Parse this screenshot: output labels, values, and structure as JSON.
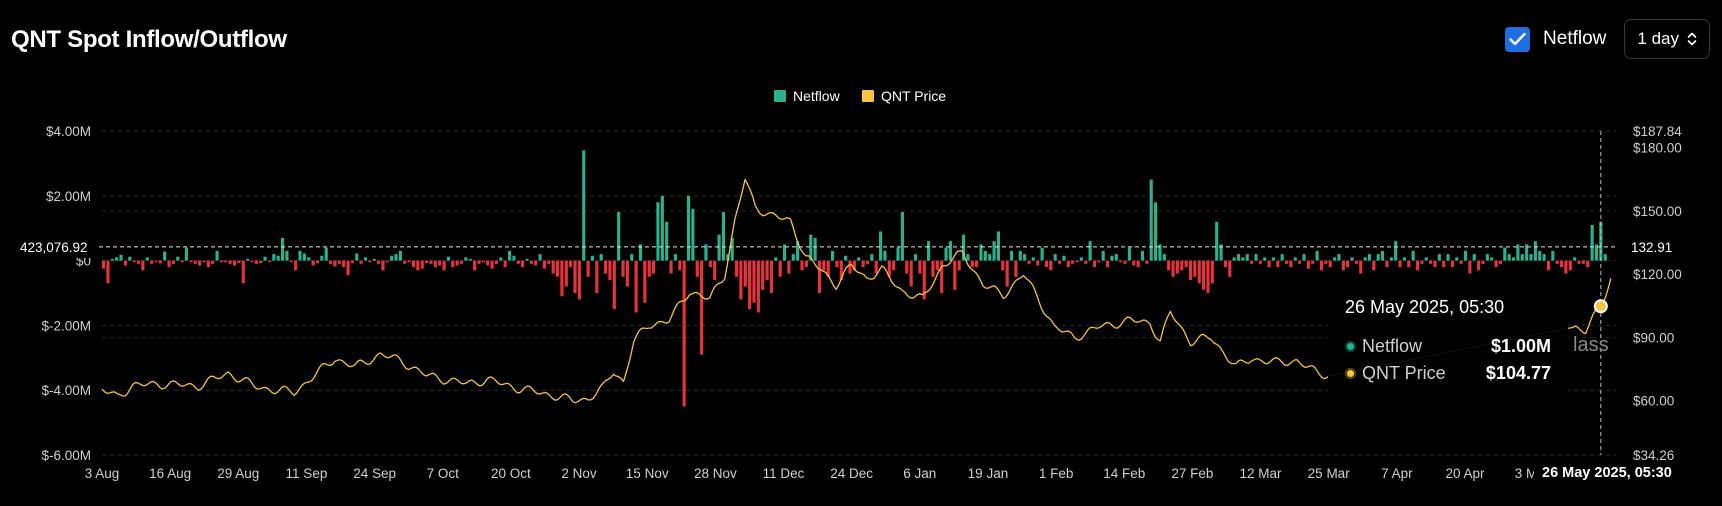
{
  "header": {
    "title": "QNT Spot Inflow/Outflow",
    "netflow_toggle_label": "Netflow",
    "interval_value": "1 day"
  },
  "colors": {
    "inflow": "#2bb18d",
    "outflow": "#e8323c",
    "price": "#f5c243",
    "checkbox": "#1f6fe0"
  },
  "icons": [
    "check-icon",
    "chevron-up-down-icon"
  ],
  "tooltip": {
    "date": "26 May 2025, 05:30",
    "rows": [
      {
        "name": "Netflow",
        "value": "$1.00M",
        "color": "#2bb18d"
      },
      {
        "name": "QNT Price",
        "value": "$104.77",
        "color": "#f5c243"
      }
    ]
  },
  "crosshair": {
    "date_label": "26 May 2025, 05:30",
    "netflow_label": "423,076.92",
    "price_label": "132.91",
    "netflow_value": 423076.92,
    "price_value": 132.91
  },
  "watermark_text": "lass",
  "chart_data": {
    "type": "bar",
    "legend": {
      "position": "top-center",
      "items": [
        {
          "name": "Netflow",
          "color": "#2bb18d"
        },
        {
          "name": "QNT Price",
          "color": "#f5c243"
        }
      ]
    },
    "x_start": "2024-08-03",
    "x_end": "2025-05-29",
    "x_ticks": [
      "3 Aug",
      "16 Aug",
      "29 Aug",
      "11 Sep",
      "24 Sep",
      "7 Oct",
      "20 Oct",
      "2 Nov",
      "15 Nov",
      "28 Nov",
      "11 Dec",
      "24 Dec",
      "6 Jan",
      "19 Jan",
      "1 Feb",
      "14 Feb",
      "27 Feb",
      "12 Mar",
      "25 Mar",
      "7 Apr",
      "20 Apr",
      "3 May"
    ],
    "left_axis": {
      "min": -6000000,
      "max": 4000000,
      "ticks": [
        4000000,
        2000000,
        0,
        -2000000,
        -4000000,
        -6000000
      ],
      "tick_labels": [
        "$4.00M",
        "$2.00M",
        "$0",
        "$-2.00M",
        "$-4.00M",
        "$-6.00M"
      ]
    },
    "right_axis": {
      "min": 34.26,
      "max": 187.84,
      "ticks": [
        187.84,
        180,
        150,
        120,
        90,
        60,
        34.26
      ],
      "tick_labels": [
        "$187.84",
        "$180.00",
        "$150.00",
        "$120.00",
        "$90.00",
        "$60.00",
        "$34.26"
      ]
    },
    "grid": true,
    "series": [
      {
        "name": "Netflow",
        "type": "bar",
        "values": [
          -0.25,
          -0.7,
          0.05,
          0.1,
          0.18,
          -0.15,
          0.12,
          -0.05,
          -0.1,
          -0.3,
          0.1,
          -0.1,
          -0.05,
          -0.08,
          0.28,
          -0.2,
          -0.1,
          0.12,
          -0.05,
          0.4,
          -0.05,
          -0.1,
          -0.15,
          -0.05,
          -0.2,
          -0.1,
          0.3,
          -0.05,
          -0.05,
          -0.1,
          -0.15,
          -0.08,
          -0.7,
          0.05,
          -0.05,
          -0.1,
          -0.08,
          0.12,
          -0.05,
          0.2,
          0.15,
          0.7,
          0.3,
          -0.05,
          -0.3,
          0.3,
          0.22,
          0.1,
          -0.15,
          -0.08,
          0.15,
          0.4,
          -0.1,
          -0.18,
          -0.1,
          -0.2,
          -0.45,
          -0.08,
          0.22,
          -0.1,
          0.1,
          -0.05,
          0.05,
          -0.1,
          -0.3,
          -0.05,
          0.15,
          0.2,
          0.3,
          -0.1,
          -0.05,
          -0.2,
          -0.3,
          -0.25,
          -0.08,
          -0.1,
          -0.2,
          -0.15,
          -0.3,
          0.12,
          -0.2,
          -0.15,
          -0.1,
          0.1,
          0.05,
          -0.3,
          -0.1,
          -0.05,
          -0.15,
          -0.25,
          -0.1,
          0.1,
          -0.2,
          0.3,
          0.15,
          -0.1,
          -0.2,
          0.05,
          -0.1,
          -0.15,
          0.2,
          -0.25,
          -0.1,
          -0.4,
          -0.5,
          -1.1,
          -0.8,
          -0.2,
          -1.0,
          -1.2,
          3.4,
          -0.5,
          0.15,
          -1.0,
          0.2,
          -0.4,
          -0.6,
          -1.5,
          1.5,
          -0.5,
          -0.8,
          0.2,
          -1.6,
          0.5,
          -1.3,
          -0.5,
          -0.4,
          1.8,
          2.0,
          1.2,
          -0.4,
          0.2,
          -0.3,
          -4.5,
          2.0,
          1.6,
          -0.5,
          -2.9,
          0.5,
          -0.2,
          -0.6,
          0.8,
          1.5,
          0.2,
          0.7,
          -0.5,
          -1.2,
          -0.8,
          -1.5,
          -1.3,
          -1.6,
          -0.9,
          -0.6,
          -1.0,
          0.1,
          -0.5,
          0.5,
          -0.4,
          0.2,
          0.6,
          -0.3,
          -0.2,
          0.8,
          0.7,
          -1.0,
          -0.3,
          -0.5,
          0.3,
          -0.2,
          -0.6,
          0.15,
          -0.4,
          -0.3,
          0.1,
          -0.2,
          -0.1,
          0.2,
          -0.4,
          0.9,
          0.3,
          -0.5,
          -0.3,
          0.4,
          1.5,
          -0.4,
          -0.8,
          0.2,
          -0.4,
          -1.2,
          0.6,
          -0.5,
          -0.3,
          -1.0,
          0.4,
          0.6,
          -0.9,
          -0.3,
          0.8,
          0.2,
          -0.2,
          -0.2,
          0.5,
          0.3,
          0.2,
          0.6,
          0.9,
          -0.3,
          -0.8,
          0.3,
          -0.5,
          0.3,
          0.2,
          -0.1,
          0.1,
          -0.15,
          0.4,
          -0.2,
          -0.3,
          0.2,
          -0.1,
          0.15,
          -0.2,
          -0.1,
          -0.05,
          0.1,
          -0.1,
          0.6,
          -0.2,
          -0.05,
          0.3,
          -0.2,
          0.15,
          0.2,
          -0.05,
          -0.1,
          0.4,
          -0.15,
          -0.2,
          0.3,
          -0.1,
          2.5,
          1.8,
          0.5,
          0.2,
          -0.3,
          -0.5,
          -0.4,
          -0.3,
          -0.2,
          -0.6,
          -0.5,
          -0.7,
          -0.9,
          -1.0,
          -0.7,
          1.2,
          0.5,
          -0.2,
          -0.5,
          0.1,
          0.2,
          0.1,
          0.2,
          -0.1,
          0.2,
          -0.1,
          0.1,
          -0.2,
          0.1,
          -0.2,
          0.2,
          -0.1,
          -0.2,
          0.1,
          -0.1,
          0.2,
          -0.25,
          -0.1,
          0.3,
          -0.3,
          -0.1,
          -0.2,
          0.1,
          0.2,
          -0.3,
          -0.2,
          0.1,
          -0.1,
          -0.4,
          0.1,
          0.2,
          -0.3,
          0.2,
          0.3,
          -0.2,
          0.1,
          0.6,
          -0.2,
          0.1,
          -0.2,
          0.3,
          -0.3,
          -0.1,
          0.1,
          -0.1,
          -0.2,
          0.2,
          -0.2,
          0.2,
          -0.2,
          0.1,
          -0.1,
          0.3,
          -0.4,
          0.2,
          -0.3,
          -0.1,
          0.2,
          0.1,
          -0.2,
          -0.1,
          0.4,
          0.2,
          0.1,
          0.5,
          0.2,
          0.5,
          0.2,
          0.6,
          0.3,
          0.2,
          -0.3,
          0.3,
          -0.1,
          -0.2,
          -0.4,
          -0.3,
          0.1,
          -0.1,
          -0.1,
          -0.2,
          1.1,
          0.5,
          1.2,
          0.2
        ],
        "unit_scale": 1000000
      },
      {
        "name": "QNT Price",
        "type": "line",
        "axis": "right",
        "keypoints": [
          [
            "2024-08-03",
            65
          ],
          [
            "2024-08-06",
            62
          ],
          [
            "2024-08-09",
            67
          ],
          [
            "2024-08-14",
            68
          ],
          [
            "2024-08-22",
            67
          ],
          [
            "2024-08-28",
            73
          ],
          [
            "2024-09-02",
            67
          ],
          [
            "2024-09-06",
            65
          ],
          [
            "2024-09-10",
            64
          ],
          [
            "2024-09-14",
            72
          ],
          [
            "2024-09-18",
            80
          ],
          [
            "2024-09-22",
            76
          ],
          [
            "2024-09-27",
            82
          ],
          [
            "2024-10-01",
            79
          ],
          [
            "2024-10-06",
            72
          ],
          [
            "2024-10-10",
            70
          ],
          [
            "2024-10-14",
            68
          ],
          [
            "2024-10-18",
            70
          ],
          [
            "2024-10-24",
            66
          ],
          [
            "2024-10-28",
            64
          ],
          [
            "2024-11-01",
            62
          ],
          [
            "2024-11-04",
            60
          ],
          [
            "2024-11-07",
            61
          ],
          [
            "2024-11-10",
            66
          ],
          [
            "2024-11-12",
            74
          ],
          [
            "2024-11-14",
            69
          ],
          [
            "2024-11-16",
            88
          ],
          [
            "2024-11-19",
            96
          ],
          [
            "2024-11-23",
            98
          ],
          [
            "2024-11-27",
            112
          ],
          [
            "2024-12-01",
            108
          ],
          [
            "2024-12-04",
            120
          ],
          [
            "2024-12-06",
            145
          ],
          [
            "2024-12-08",
            165
          ],
          [
            "2024-12-10",
            152
          ],
          [
            "2024-12-13",
            148
          ],
          [
            "2024-12-17",
            145
          ],
          [
            "2024-12-20",
            128
          ],
          [
            "2024-12-23",
            122
          ],
          [
            "2024-12-26",
            115
          ],
          [
            "2024-12-29",
            124
          ],
          [
            "2025-01-01",
            118
          ],
          [
            "2025-01-04",
            122
          ],
          [
            "2025-01-08",
            112
          ],
          [
            "2025-01-12",
            108
          ],
          [
            "2025-01-16",
            124
          ],
          [
            "2025-01-20",
            130
          ],
          [
            "2025-01-24",
            115
          ],
          [
            "2025-01-28",
            110
          ],
          [
            "2025-02-01",
            120
          ],
          [
            "2025-02-04",
            108
          ],
          [
            "2025-02-07",
            95
          ],
          [
            "2025-02-11",
            90
          ],
          [
            "2025-02-16",
            95
          ],
          [
            "2025-02-22",
            98
          ],
          [
            "2025-02-26",
            97
          ],
          [
            "2025-02-28",
            88
          ],
          [
            "2025-03-02",
            102
          ],
          [
            "2025-03-06",
            88
          ],
          [
            "2025-03-10",
            90
          ],
          [
            "2025-03-15",
            76
          ],
          [
            "2025-03-18",
            80
          ],
          [
            "2025-03-23",
            78
          ],
          [
            "2025-03-27",
            79
          ],
          [
            "2025-03-31",
            73
          ],
          [
            "2025-04-03",
            72
          ],
          [
            "2025-05-21",
            95
          ],
          [
            "2025-05-23",
            93
          ],
          [
            "2025-05-26",
            104.77
          ],
          [
            "2025-05-28",
            118
          ]
        ]
      }
    ]
  }
}
